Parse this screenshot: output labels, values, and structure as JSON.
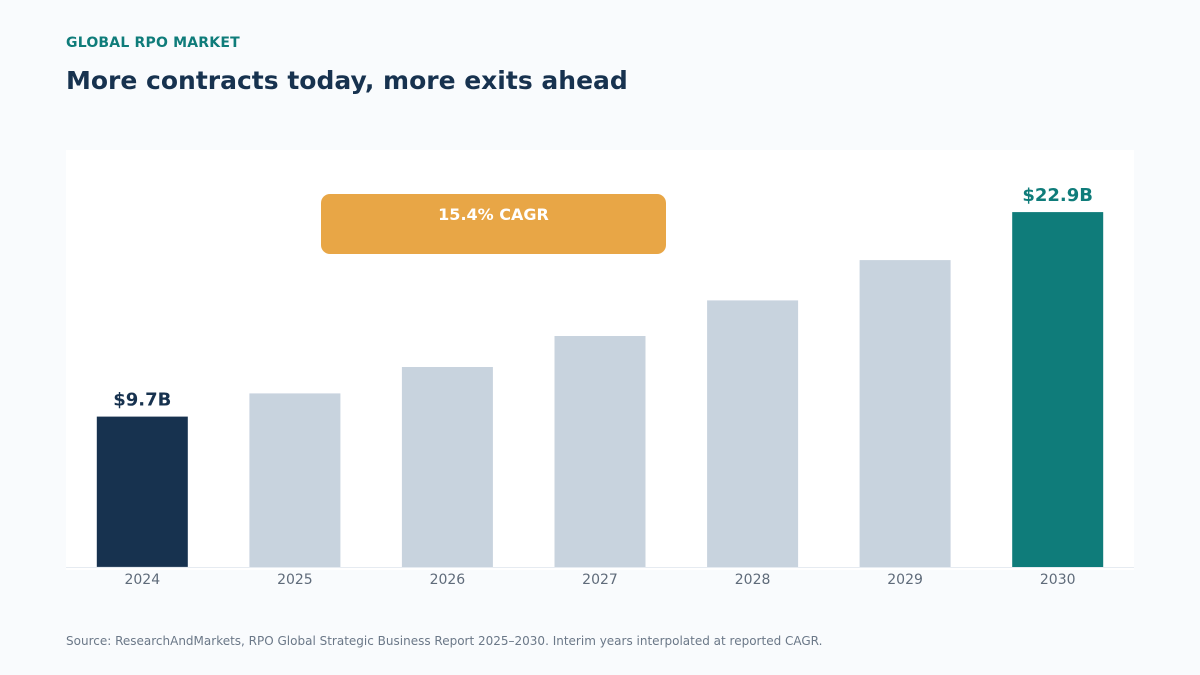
{
  "header": {
    "eyebrow": "GLOBAL RPO MARKET",
    "title": "More contracts today, more exits ahead"
  },
  "footer": {
    "source": "Source: ResearchAndMarkets, RPO Global Strategic Business Report 2025–2030. Interim years interpolated at reported CAGR."
  },
  "colors": {
    "start_bar": "#17324f",
    "mid_bar": "#c8d3de",
    "end_bar": "#0f7c7a",
    "badge": "#e8a646",
    "axis_text": "#5f6b7a"
  },
  "chart_data": {
    "type": "bar",
    "categories": [
      "2024",
      "2025",
      "2026",
      "2027",
      "2028",
      "2029",
      "2030"
    ],
    "values": [
      9.7,
      11.2,
      12.9,
      14.9,
      17.2,
      19.8,
      22.9
    ],
    "unit": "$B",
    "ylim": [
      0,
      27
    ],
    "grid": false,
    "value_labels": [
      {
        "index": 0,
        "text": "$9.7B"
      },
      {
        "index": 6,
        "text": "$22.9B"
      }
    ],
    "annotation": "15.4% CAGR"
  }
}
